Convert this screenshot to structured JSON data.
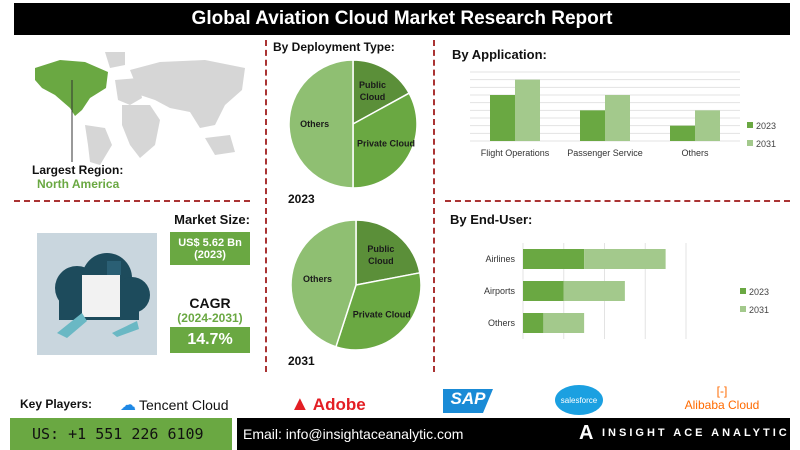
{
  "title": "Global Aviation Cloud Market Research Report",
  "region": {
    "label": "Largest Region:",
    "value": "North America"
  },
  "market_size": {
    "label": "Market Size:",
    "value": "US$ 5.62 Bn",
    "year": "(2023)"
  },
  "cagr": {
    "label": "CAGR",
    "period": "(2024-2031)",
    "value": "14.7%"
  },
  "colors": {
    "dark_green": "#5b8f39",
    "mid_green": "#6aa842",
    "light_green": "#a3c98c",
    "pie_others": "#8fbf72",
    "accent_red": "#a33333"
  },
  "chart_data": [
    {
      "type": "pie",
      "title": "By Deployment Type:",
      "caption": "2023",
      "labels": [
        "Public Cloud",
        "Private Cloud",
        "Others"
      ],
      "values": [
        17,
        33,
        50
      ]
    },
    {
      "type": "pie",
      "caption": "2031",
      "labels": [
        "Public Cloud",
        "Private Cloud",
        "Others"
      ],
      "values": [
        22,
        33,
        45
      ]
    },
    {
      "type": "bar",
      "title": "By Application:",
      "categories": [
        "Flight Operations",
        "Passenger Service",
        "Others"
      ],
      "series": [
        {
          "name": "2023",
          "values": [
            6,
            4,
            2
          ]
        },
        {
          "name": "2031",
          "values": [
            8,
            6,
            4
          ]
        }
      ],
      "ylim": [
        0,
        9
      ],
      "grid": true,
      "legend": "right"
    },
    {
      "type": "bar",
      "orientation": "horizontal",
      "stacked": true,
      "title": "By End-User:",
      "categories": [
        "Airlines",
        "Airports",
        "Others"
      ],
      "series": [
        {
          "name": "2023",
          "values": [
            1.5,
            1.0,
            0.5
          ]
        },
        {
          "name": "2031",
          "values": [
            2.0,
            1.5,
            1.0
          ]
        }
      ],
      "xlim": [
        0,
        4
      ],
      "grid": true,
      "legend": "right"
    }
  ],
  "footer": {
    "key_players_label": "Key Players:",
    "players": [
      "Tencent Cloud",
      "Adobe",
      "SAP",
      "salesforce",
      "Alibaba Cloud"
    ],
    "phone": "US: +1 551 226 6109",
    "email": "Email: info@insightaceanalytic.com",
    "brand": "INSIGHT ACE ANALYTIC"
  }
}
